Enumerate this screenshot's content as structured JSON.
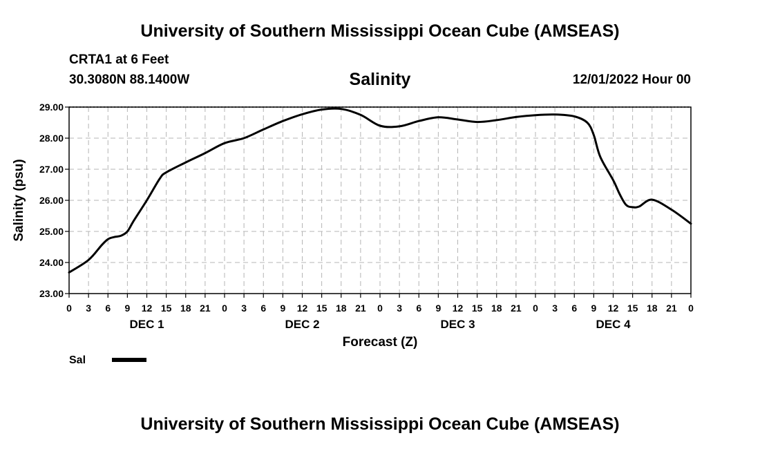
{
  "header": {
    "title": "University of Southern Mississippi Ocean Cube (AMSEAS)",
    "station": "CRTA1 at 6 Feet",
    "coordinates": "30.3080N  88.1400W",
    "chart_title": "Salinity",
    "datetime": "12/01/2022 Hour 00"
  },
  "footer": {
    "title": "University of Southern Mississippi Ocean Cube (AMSEAS)"
  },
  "chart_data": {
    "type": "line",
    "title": "Salinity",
    "xlabel": "Forecast (Z)",
    "ylabel": "Salinity (psu)",
    "xlim": [
      0,
      96
    ],
    "ylim": [
      23.0,
      29.0
    ],
    "grid": true,
    "x_ticks": [
      0,
      3,
      6,
      9,
      12,
      15,
      18,
      21,
      24,
      27,
      30,
      33,
      36,
      39,
      42,
      45,
      48,
      51,
      54,
      57,
      60,
      63,
      66,
      69,
      72,
      75,
      78,
      81,
      84,
      87,
      90,
      93,
      96
    ],
    "x_tick_labels": [
      "0",
      "3",
      "6",
      "9",
      "12",
      "15",
      "18",
      "21",
      "0",
      "3",
      "6",
      "9",
      "12",
      "15",
      "18",
      "21",
      "0",
      "3",
      "6",
      "9",
      "12",
      "15",
      "18",
      "21",
      "0",
      "3",
      "6",
      "9",
      "12",
      "15",
      "18",
      "21",
      "0"
    ],
    "y_ticks": [
      23.0,
      24.0,
      25.0,
      26.0,
      27.0,
      28.0,
      29.0
    ],
    "y_tick_labels": [
      "23.00",
      "24.00",
      "25.00",
      "26.00",
      "27.00",
      "28.00",
      "29.00"
    ],
    "day_labels": [
      {
        "label": "DEC 1",
        "x": 12
      },
      {
        "label": "DEC 2",
        "x": 36
      },
      {
        "label": "DEC 3",
        "x": 60
      },
      {
        "label": "DEC 4",
        "x": 84
      }
    ],
    "legend": {
      "label": "Sal",
      "placement": "bottom-left"
    },
    "series": [
      {
        "name": "Sal",
        "color": "#000000",
        "x": [
          0,
          3,
          5,
          6,
          7,
          8,
          9,
          10,
          12,
          14,
          15,
          18,
          21,
          24,
          27,
          30,
          33,
          36,
          39,
          42,
          45,
          48,
          51,
          54,
          57,
          60,
          63,
          66,
          69,
          72,
          75,
          78,
          80,
          81,
          82,
          84,
          85,
          86,
          87,
          88,
          90,
          93,
          96
        ],
        "values": [
          23.68,
          24.08,
          24.55,
          24.75,
          24.82,
          24.86,
          25.0,
          25.35,
          26.0,
          26.7,
          26.9,
          27.22,
          27.52,
          27.84,
          28.0,
          28.28,
          28.55,
          28.77,
          28.92,
          28.94,
          28.75,
          28.4,
          28.38,
          28.55,
          28.67,
          28.6,
          28.52,
          28.58,
          28.68,
          28.74,
          28.76,
          28.7,
          28.5,
          28.1,
          27.4,
          26.65,
          26.2,
          25.85,
          25.78,
          25.8,
          26.02,
          25.7,
          25.25
        ]
      }
    ]
  }
}
